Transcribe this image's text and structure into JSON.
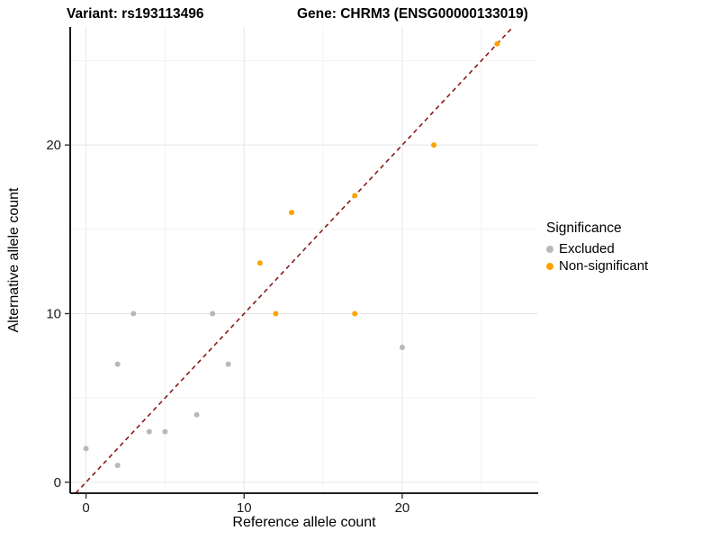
{
  "titles": {
    "variant": "Variant: rs193113496",
    "gene": "Gene: CHRM3 (ENSG00000133019)"
  },
  "chart_data": {
    "type": "scatter",
    "title": "Variant: rs193113496 — Gene: CHRM3 (ENSG00000133019)",
    "xlabel": "Reference allele count",
    "ylabel": "Alternative allele count",
    "xlim": [
      -1.0,
      28.6
    ],
    "ylim": [
      -0.65,
      27.0
    ],
    "x_ticks": [
      0,
      10,
      20
    ],
    "y_ticks": [
      0,
      10,
      20
    ],
    "x_minor_ticks": [
      5,
      15,
      25
    ],
    "y_minor_ticks": [
      5,
      15,
      25
    ],
    "grid": true,
    "legend": {
      "title": "Significance",
      "position": "right",
      "entries": [
        {
          "label": "Excluded",
          "color": "#B8B8B8"
        },
        {
          "label": "Non-significant",
          "color": "#FFA200"
        }
      ]
    },
    "reference_line": {
      "type": "identity y = x",
      "style": "dashed",
      "color": "#8B1A1A"
    },
    "series": [
      {
        "name": "Excluded",
        "color": "#B8B8B8",
        "points": [
          [
            0,
            2
          ],
          [
            2,
            1
          ],
          [
            2,
            7
          ],
          [
            3,
            10
          ],
          [
            4,
            3
          ],
          [
            5,
            3
          ],
          [
            7,
            4
          ],
          [
            8,
            10
          ],
          [
            9,
            7
          ],
          [
            20,
            8
          ]
        ]
      },
      {
        "name": "Non-significant",
        "color": "#FFA200",
        "points": [
          [
            11,
            13
          ],
          [
            12,
            10
          ],
          [
            13,
            16
          ],
          [
            17,
            17
          ],
          [
            17,
            10
          ],
          [
            22,
            20
          ],
          [
            26,
            26
          ]
        ]
      }
    ]
  }
}
